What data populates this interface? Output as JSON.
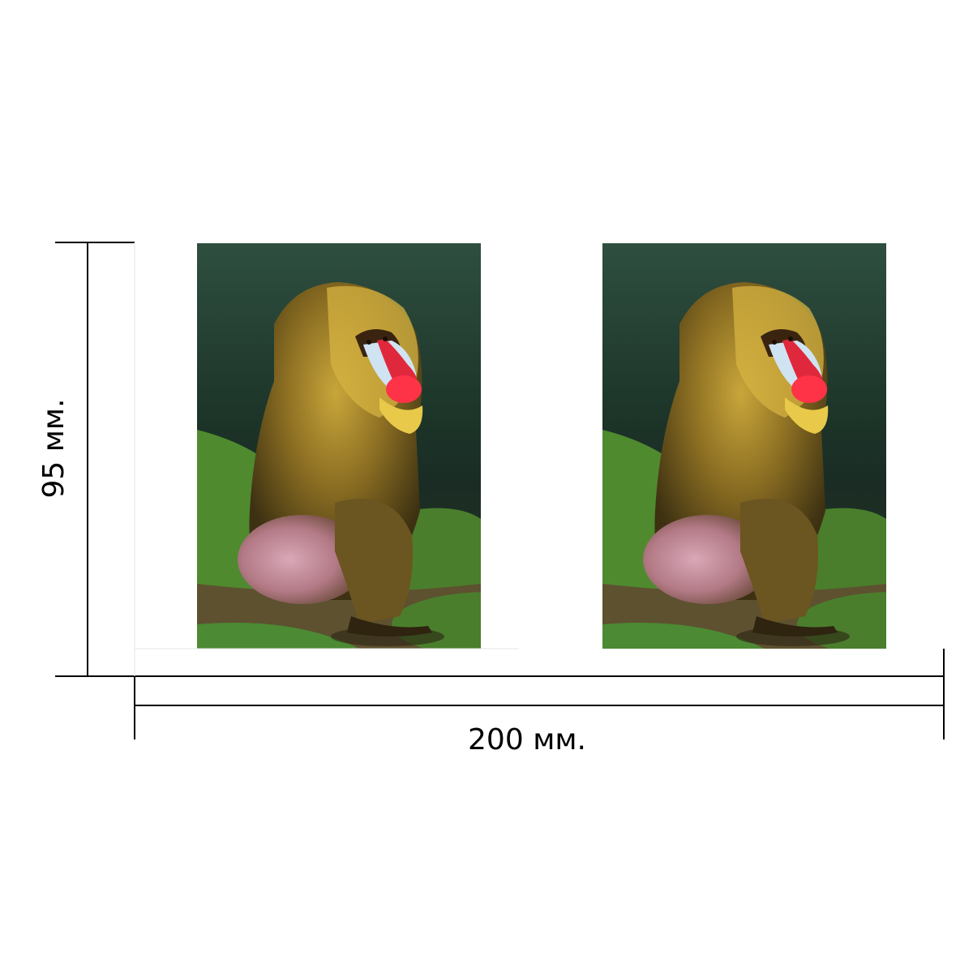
{
  "dimensions": {
    "width_label": "200 мм.",
    "height_label": "95 мм."
  },
  "photos": [
    {
      "subject": "mandrill-photo"
    },
    {
      "subject": "mandrill-photo"
    }
  ],
  "colors": {
    "background": "#ffffff",
    "line": "#000000",
    "grass": "#4f8a2f",
    "foliage": "#1f3a2c",
    "fur": "#7a6420",
    "muzzle_red": "#e0283c",
    "cheek_blue": "#cfe3f2"
  }
}
